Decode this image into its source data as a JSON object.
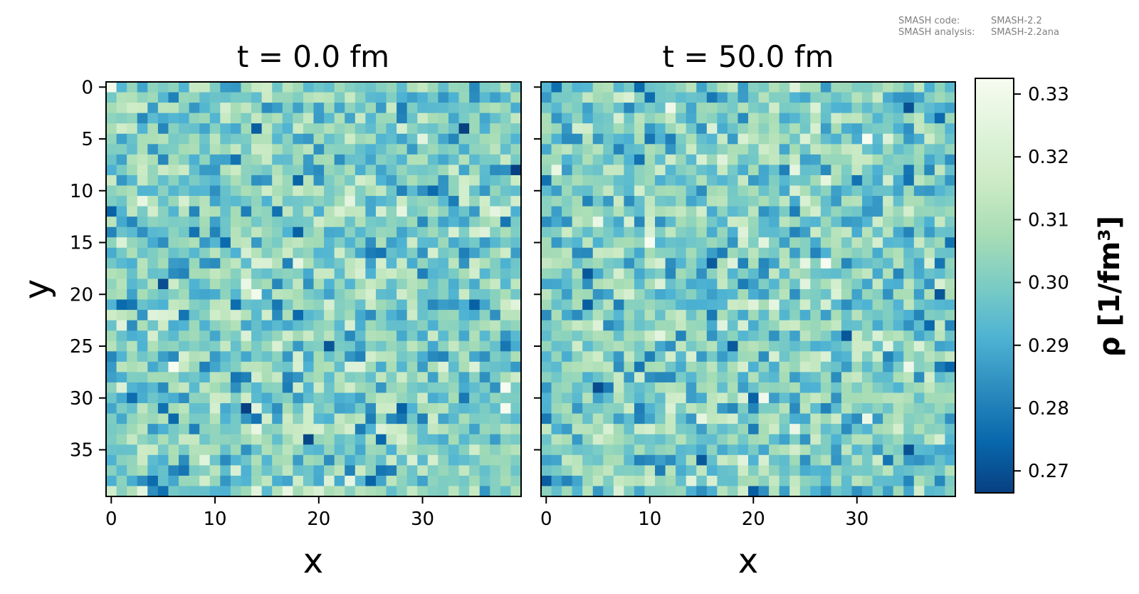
{
  "metadata_text": {
    "code_label": "SMASH code:",
    "code_value": "SMASH-2.2",
    "analysis_label": "SMASH analysis:",
    "analysis_value": "SMASH-2.2ana"
  },
  "chart_data": [
    {
      "type": "heatmap",
      "title": "t = 0.0 fm",
      "xlabel": "x",
      "ylabel": "y",
      "grid_size": [
        40,
        40
      ],
      "xlim": [
        -0.5,
        39.5
      ],
      "ylim": [
        39.5,
        -0.5
      ],
      "xticks": [
        0,
        10,
        20,
        30
      ],
      "yticks": [
        0,
        5,
        10,
        15,
        20,
        25,
        30,
        35
      ],
      "value_range": [
        0.266,
        0.333
      ],
      "colormap": "GnBu_r",
      "grid": false
    },
    {
      "type": "heatmap",
      "title": "t = 50.0 fm",
      "xlabel": "x",
      "ylabel": "",
      "grid_size": [
        40,
        40
      ],
      "xlim": [
        -0.5,
        39.5
      ],
      "ylim": [
        39.5,
        -0.5
      ],
      "xticks": [
        0,
        10,
        20,
        30
      ],
      "yticks": [
        0,
        5,
        10,
        15,
        20,
        25,
        30,
        35
      ],
      "value_range": [
        0.266,
        0.333
      ],
      "colormap": "GnBu_r",
      "grid": false
    }
  ],
  "colorbar": {
    "label": "ρ [1/fm³]",
    "min": 0.2665,
    "max": 0.3325,
    "ticks": [
      0.27,
      0.28,
      0.29,
      0.3,
      0.31,
      0.32,
      0.33
    ],
    "tick_labels": [
      "0.27",
      "0.28",
      "0.29",
      "0.30",
      "0.31",
      "0.32",
      "0.33"
    ],
    "colors": [
      "#084081",
      "#0868ac",
      "#2b8cbe",
      "#4eb3d3",
      "#7bccc4",
      "#a8ddb5",
      "#ccebc5",
      "#e0f3db",
      "#f7fcf0"
    ]
  }
}
